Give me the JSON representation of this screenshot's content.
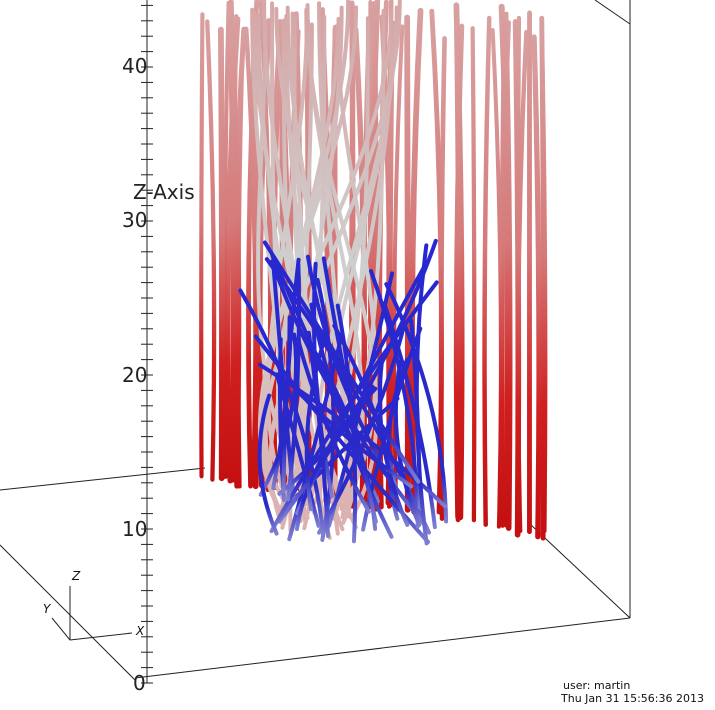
{
  "axis": {
    "title": "Z-Axis",
    "ticks": [
      "0",
      "10",
      "20",
      "30",
      "40"
    ]
  },
  "triad": {
    "x": "X",
    "y": "Y",
    "z": "Z"
  },
  "info": {
    "user": "user: martin",
    "date": "Thu Jan 31 15:56:36 2013"
  }
}
